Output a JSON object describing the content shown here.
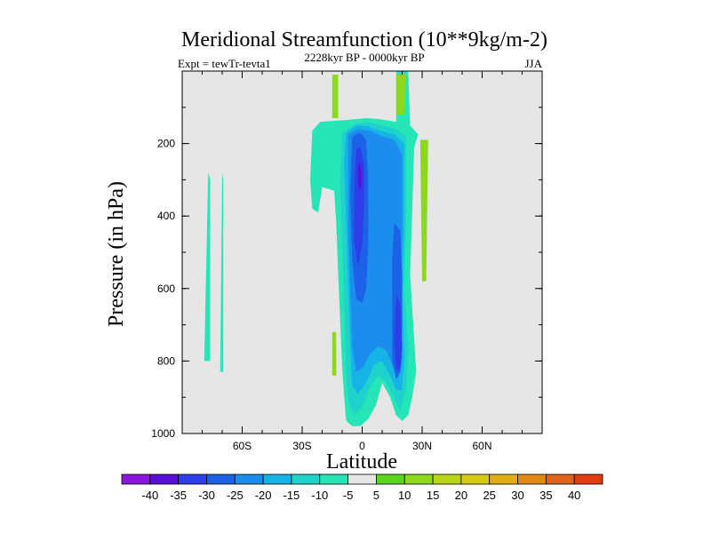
{
  "chart_data": {
    "type": "contour",
    "title": "Meridional Streamfunction (10**9kg/m-2)",
    "subtitle": "2228kyr BP - 0000kyr BP",
    "left_label": "Expt = tewTr-tevta1",
    "right_label": "JJA",
    "xlabel": "Latitude",
    "ylabel": "Pressure (in hPa)",
    "x_range": [
      -90,
      90
    ],
    "y_range": [
      0,
      1000
    ],
    "y_ticks": [
      {
        "value": 200,
        "label": "200"
      },
      {
        "value": 400,
        "label": "400"
      },
      {
        "value": 600,
        "label": "600"
      },
      {
        "value": 800,
        "label": "800"
      },
      {
        "value": 1000,
        "label": "1000"
      }
    ],
    "x_ticks": [
      {
        "value": -60,
        "label": "60S"
      },
      {
        "value": -30,
        "label": "30S"
      },
      {
        "value": 0,
        "label": "0"
      },
      {
        "value": 30,
        "label": "30N"
      },
      {
        "value": 60,
        "label": "60N"
      }
    ],
    "background_color": "#e6e6e6",
    "colorbar": {
      "levels": [
        "-40",
        "-35",
        "-30",
        "-25",
        "-20",
        "-15",
        "-10",
        "-5",
        "5",
        "10",
        "15",
        "20",
        "25",
        "30",
        "35",
        "40"
      ],
      "colors": [
        "#8c15e0",
        "#5a0fd8",
        "#2d3ee8",
        "#1c62e6",
        "#1d8ded",
        "#16b3e6",
        "#1fd3cc",
        "#26e6b8",
        "#e6e6e6",
        "#57d61b",
        "#8cd81a",
        "#b8d618",
        "#d8cc12",
        "#e0ad12",
        "#e08a12",
        "#e0631a",
        "#e03c10"
      ]
    },
    "regions": [
      {
        "name": "west-ribbon-60s",
        "value": -10,
        "lat": [
          [
            -79,
            800
          ],
          [
            -77,
            280
          ],
          [
            -76,
            300
          ],
          [
            -76,
            800
          ]
        ]
      },
      {
        "name": "narrow-strip-70s",
        "value": -10,
        "lat": [
          [
            -71,
            830
          ],
          [
            -70,
            280
          ],
          [
            -69.5,
            300
          ],
          [
            -69.5,
            830
          ]
        ]
      },
      {
        "name": "upper-green-patch",
        "value": 10,
        "lat": [
          [
            -15,
            10
          ],
          [
            -12,
            10
          ],
          [
            -12,
            130
          ],
          [
            -15,
            130
          ]
        ]
      },
      {
        "name": "lower-green-patch",
        "value": 10,
        "lat": [
          [
            -15,
            720
          ],
          [
            -13,
            720
          ],
          [
            -13,
            840
          ],
          [
            -15,
            840
          ]
        ]
      },
      {
        "name": "nh-green-patch",
        "value": 10,
        "lat": [
          [
            29,
            190
          ],
          [
            33,
            190
          ],
          [
            32,
            580
          ],
          [
            30,
            580
          ]
        ]
      },
      {
        "name": "top-green-strip",
        "value": 10,
        "lat": [
          [
            17,
            10
          ],
          [
            22,
            10
          ],
          [
            21,
            120
          ],
          [
            17,
            120
          ]
        ]
      }
    ]
  }
}
